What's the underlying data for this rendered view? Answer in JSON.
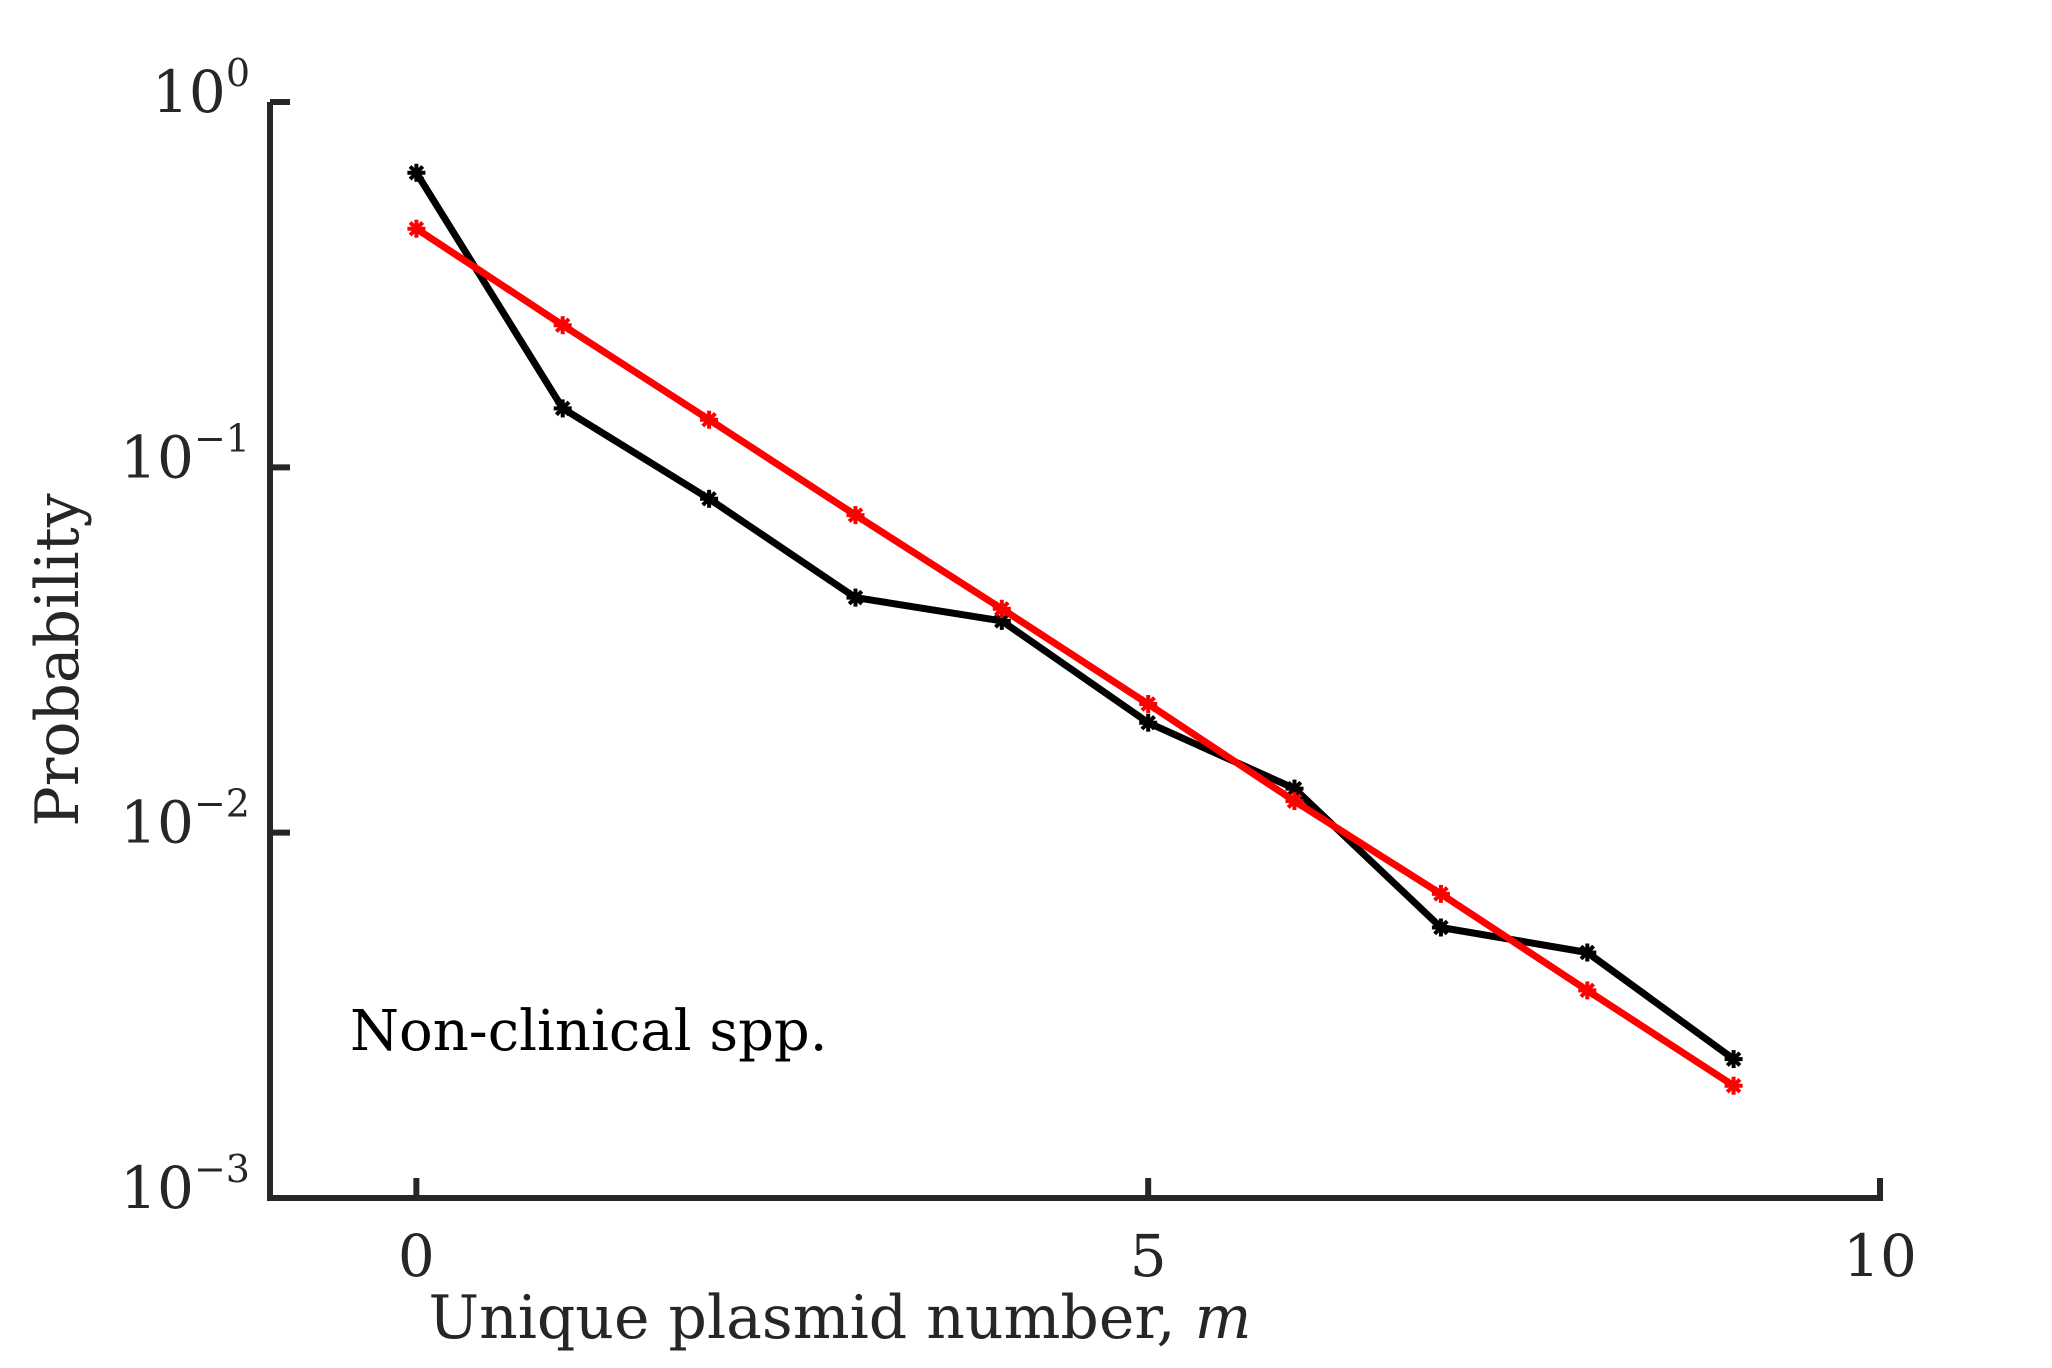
{
  "chart_data": {
    "type": "line",
    "title": "",
    "xlabel_text": "Unique plasmid number,",
    "xlabel_var": "m",
    "ylabel": "Probability",
    "annotation": "Non-clinical spp.",
    "xlim": [
      -1,
      10
    ],
    "ylim": [
      0.001,
      1
    ],
    "yscale": "log",
    "x_ticks": [
      0,
      5,
      10
    ],
    "x_tick_labels": [
      "0",
      "5",
      "10"
    ],
    "y_ticks": [
      {
        "value": 0.001,
        "base": "10",
        "exp": "−3"
      },
      {
        "value": 0.01,
        "base": "10",
        "exp": "−2"
      },
      {
        "value": 0.1,
        "base": "10",
        "exp": "−1"
      },
      {
        "value": 1,
        "base": "10",
        "exp": "0"
      }
    ],
    "grid": false,
    "x": [
      0,
      1,
      2,
      3,
      4,
      5,
      6,
      7,
      8,
      9
    ],
    "series": [
      {
        "color": "#000000",
        "values": [
          0.64,
          0.145,
          0.082,
          0.044,
          0.038,
          0.02,
          0.0132,
          0.0055,
          0.0047,
          0.0024
        ]
      },
      {
        "color": "#ff0000",
        "values": [
          0.45,
          0.245,
          0.135,
          0.074,
          0.041,
          0.0225,
          0.0122,
          0.0068,
          0.0037,
          0.00203
        ]
      }
    ],
    "axis_color": "#262626"
  }
}
